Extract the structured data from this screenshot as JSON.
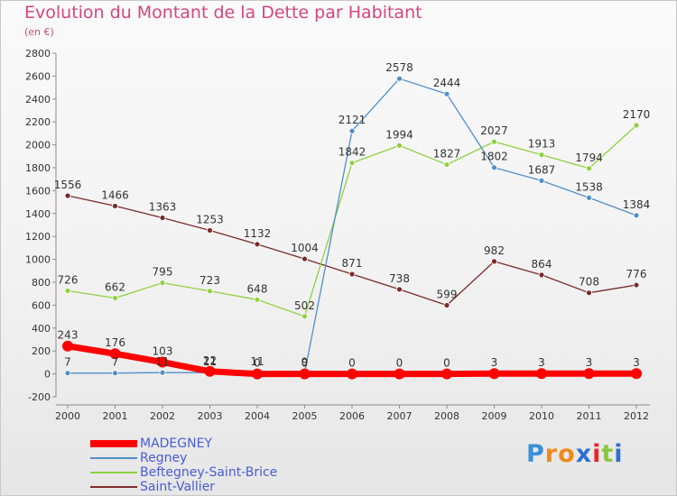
{
  "title": "Evolution du Montant de la Dette par Habitant",
  "subtitle": "(en €)",
  "logo_text": "Proxiti",
  "colors": {
    "title": "#d6467d",
    "legend_text": "#4a5cd8",
    "axis": "#8c8c8c"
  },
  "chart_data": {
    "type": "line",
    "title": "Evolution du Montant de la Dette par Habitant",
    "subtitle": "(en €)",
    "xlabel": "",
    "ylabel": "",
    "ylim": [
      -200,
      2800
    ],
    "y_ticks": [
      -200,
      0,
      200,
      400,
      600,
      800,
      1000,
      1200,
      1400,
      1600,
      1800,
      2000,
      2200,
      2400,
      2600,
      2800
    ],
    "x": [
      "2000",
      "2001",
      "2002",
      "2003",
      "2004",
      "2005",
      "2006",
      "2007",
      "2008",
      "2009",
      "2010",
      "2011",
      "2012"
    ],
    "grid": false,
    "legend_position": "bottom-left",
    "series": [
      {
        "name": "MADEGNEY",
        "color": "#ff0000",
        "values": [
          243,
          176,
          103,
          22,
          0,
          0,
          0,
          0,
          0,
          3,
          3,
          3,
          3
        ],
        "labels": [
          "243",
          "176",
          "103",
          "22",
          "0",
          "0",
          "0",
          "0",
          "0",
          "3",
          "3",
          "3",
          "3"
        ]
      },
      {
        "name": "Regney",
        "color": "#4f8fcc",
        "values": [
          7,
          7,
          11,
          11,
          11,
          9,
          2121,
          2578,
          2444,
          1802,
          1687,
          1538,
          1384
        ],
        "labels": [
          "7",
          "7",
          "11",
          "11",
          "11",
          "9",
          "2121",
          "2578",
          "2444",
          "1802",
          "1687",
          "1538",
          "1384"
        ]
      },
      {
        "name": "Beftegney-Saint-Brice",
        "color": "#8fd13f",
        "values": [
          726,
          662,
          795,
          723,
          648,
          502,
          1842,
          1994,
          1827,
          2027,
          1913,
          1794,
          2170
        ],
        "labels": [
          "726",
          "662",
          "795",
          "723",
          "648",
          "502",
          "1842",
          "1994",
          "1827",
          "2027",
          "1913",
          "1794",
          "2170"
        ]
      },
      {
        "name": "Saint-Vallier",
        "color": "#7b2a2a",
        "values": [
          1556,
          1466,
          1363,
          1253,
          1132,
          1004,
          871,
          738,
          599,
          982,
          864,
          708,
          776
        ],
        "labels": [
          "1556",
          "1466",
          "1363",
          "1253",
          "1132",
          "1004",
          "871",
          "738",
          "599",
          "982",
          "864",
          "708",
          "776"
        ]
      }
    ]
  }
}
